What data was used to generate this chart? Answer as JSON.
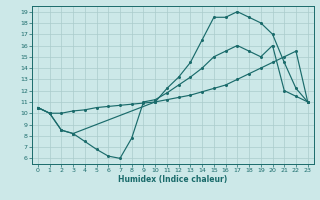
{
  "xlabel": "Humidex (Indice chaleur)",
  "bg_color": "#cce8e8",
  "grid_color": "#aacccc",
  "line_color": "#1a6b6b",
  "xlim": [
    -0.5,
    23.5
  ],
  "ylim": [
    5.5,
    19.5
  ],
  "yticks": [
    6,
    7,
    8,
    9,
    10,
    11,
    12,
    13,
    14,
    15,
    16,
    17,
    18,
    19
  ],
  "xticks": [
    0,
    1,
    2,
    3,
    4,
    5,
    6,
    7,
    8,
    9,
    10,
    11,
    12,
    13,
    14,
    15,
    16,
    17,
    18,
    19,
    20,
    21,
    22,
    23
  ],
  "line1_x": [
    0,
    1,
    2,
    3,
    4,
    5,
    6,
    7,
    8,
    9,
    10,
    11,
    12,
    13,
    14,
    15,
    16,
    17,
    18,
    19,
    20,
    21,
    22,
    23
  ],
  "line1_y": [
    10.5,
    10.0,
    8.5,
    8.2,
    7.5,
    6.8,
    6.2,
    6.0,
    7.8,
    11.0,
    11.2,
    11.8,
    12.5,
    13.2,
    14.0,
    15.0,
    15.5,
    16.0,
    15.5,
    15.0,
    16.0,
    12.0,
    11.5,
    11.0
  ],
  "line2_x": [
    0,
    1,
    2,
    3,
    4,
    5,
    6,
    7,
    8,
    9,
    10,
    11,
    12,
    13,
    14,
    15,
    16,
    17,
    18,
    19,
    20,
    21,
    22,
    23
  ],
  "line2_y": [
    10.5,
    10.0,
    10.0,
    10.2,
    10.3,
    10.5,
    10.6,
    10.7,
    10.8,
    10.9,
    11.0,
    11.2,
    11.4,
    11.6,
    11.9,
    12.2,
    12.5,
    13.0,
    13.5,
    14.0,
    14.5,
    15.0,
    15.5,
    11.0
  ],
  "line3_x": [
    0,
    1,
    2,
    3,
    10,
    11,
    12,
    13,
    14,
    15,
    16,
    17,
    18,
    19,
    20,
    21,
    22,
    23
  ],
  "line3_y": [
    10.5,
    10.0,
    8.5,
    8.2,
    11.0,
    12.2,
    13.2,
    14.5,
    16.5,
    18.5,
    18.5,
    19.0,
    18.5,
    18.0,
    17.0,
    14.5,
    12.2,
    11.0
  ]
}
